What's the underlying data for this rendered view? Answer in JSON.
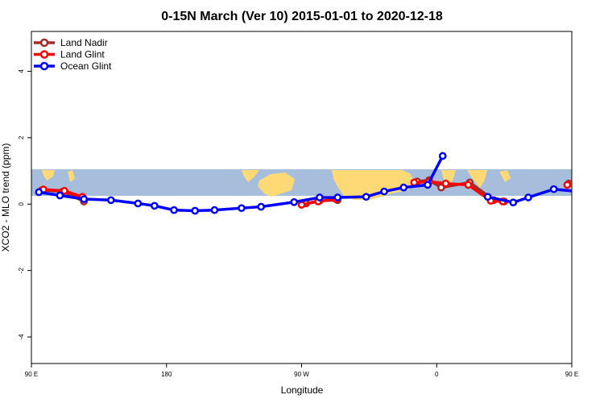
{
  "chart_data": {
    "type": "line",
    "title": "0-15N March (Ver 10)   2015-01-01 to 2020-12-18",
    "xlabel": "Longitude",
    "ylabel": "XCO2 - MLO trend (ppm)",
    "xlim": [
      90,
      450
    ],
    "ylim": [
      -4.8,
      5.2
    ],
    "x_ticks": [
      {
        "value": 90,
        "label": "90 E"
      },
      {
        "value": 180,
        "label": "180"
      },
      {
        "value": 270,
        "label": "90 W"
      },
      {
        "value": 360,
        "label": "0"
      },
      {
        "value": 450,
        "label": "90 E"
      },
      {
        "value": 540,
        "label": "180"
      }
    ],
    "y_ticks": [
      -4,
      -2,
      0,
      2,
      4
    ],
    "grid": false,
    "legend_position": "top-left",
    "map_band": {
      "y_from": 0.25,
      "y_to": 1.05,
      "ocean_color": "#a6bddb",
      "land_color": "#fed976"
    },
    "series": [
      {
        "name": "Land Nadir",
        "color": "#a52a2a",
        "segments": [
          [
            {
              "x": 97,
              "y": 0.42
            },
            {
              "x": 111,
              "y": 0.38
            },
            {
              "x": 125,
              "y": 0.08
            }
          ],
          [
            {
              "x": 273,
              "y": 0.02
            },
            {
              "x": 282,
              "y": 0.1
            },
            {
              "x": 294,
              "y": 0.12
            }
          ],
          [
            {
              "x": 347,
              "y": 0.68
            },
            {
              "x": 355,
              "y": 0.72
            },
            {
              "x": 363,
              "y": 0.5
            },
            {
              "x": 382,
              "y": 0.65
            },
            {
              "x": 398,
              "y": 0.12
            },
            {
              "x": 405,
              "y": 0.08
            }
          ],
          [
            {
              "x": 448,
              "y": 0.62
            },
            {
              "x": 467,
              "y": 0.45
            },
            {
              "x": 477,
              "y": 0.42
            },
            {
              "x": 491,
              "y": 0.08
            }
          ]
        ]
      },
      {
        "name": "Land Glint",
        "color": "#ff0000",
        "segments": [
          [
            {
              "x": 98,
              "y": 0.44
            },
            {
              "x": 112,
              "y": 0.4
            },
            {
              "x": 124,
              "y": 0.22
            }
          ],
          [
            {
              "x": 270,
              "y": -0.02
            },
            {
              "x": 281,
              "y": 0.08
            },
            {
              "x": 293,
              "y": 0.15
            }
          ],
          [
            {
              "x": 345,
              "y": 0.65
            },
            {
              "x": 355,
              "y": 0.68
            },
            {
              "x": 366,
              "y": 0.62
            },
            {
              "x": 381,
              "y": 0.58
            },
            {
              "x": 396,
              "y": 0.1
            },
            {
              "x": 404,
              "y": 0.08
            }
          ],
          [
            {
              "x": 447,
              "y": 0.58
            },
            {
              "x": 466,
              "y": 0.46
            },
            {
              "x": 478,
              "y": 0.38
            },
            {
              "x": 490,
              "y": 0.22
            }
          ]
        ]
      },
      {
        "name": "Ocean Glint",
        "color": "#0000ff",
        "segments": [
          [
            {
              "x": 95,
              "y": 0.36
            },
            {
              "x": 109,
              "y": 0.26
            },
            {
              "x": 125,
              "y": 0.15
            },
            {
              "x": 143,
              "y": 0.12
            },
            {
              "x": 161,
              "y": 0.02
            },
            {
              "x": 172,
              "y": -0.05
            },
            {
              "x": 185,
              "y": -0.18
            },
            {
              "x": 199,
              "y": -0.2
            },
            {
              "x": 212,
              "y": -0.18
            },
            {
              "x": 230,
              "y": -0.12
            },
            {
              "x": 243,
              "y": -0.08
            },
            {
              "x": 265,
              "y": 0.06
            },
            {
              "x": 282,
              "y": 0.2
            },
            {
              "x": 294,
              "y": 0.2
            },
            {
              "x": 313,
              "y": 0.22
            },
            {
              "x": 325,
              "y": 0.38
            },
            {
              "x": 338,
              "y": 0.5
            },
            {
              "x": 354,
              "y": 0.58
            },
            {
              "x": 364,
              "y": 1.45
            }
          ],
          [
            {
              "x": 394,
              "y": 0.22
            },
            {
              "x": 411,
              "y": 0.05
            },
            {
              "x": 421,
              "y": 0.2
            },
            {
              "x": 438,
              "y": 0.45
            },
            {
              "x": 454,
              "y": 0.38
            },
            {
              "x": 467,
              "y": 0.25
            },
            {
              "x": 479,
              "y": 0.15
            },
            {
              "x": 493,
              "y": 0.12
            },
            {
              "x": 510,
              "y": 0.02
            },
            {
              "x": 523,
              "y": -0.05
            }
          ]
        ]
      }
    ]
  }
}
